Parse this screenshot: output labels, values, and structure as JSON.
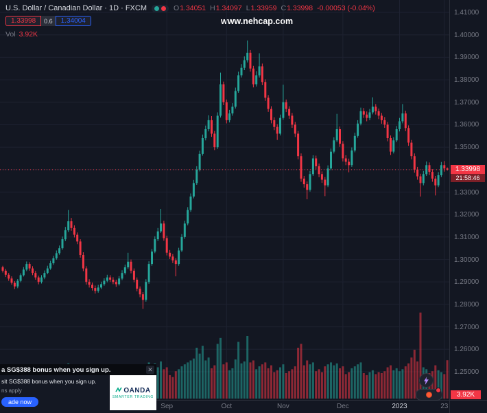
{
  "header": {
    "symbol_title": "U.S. Dollar / Canadian Dollar · 1D · FXCM",
    "ohlc": {
      "o_label": "O",
      "o_value": "1.34051",
      "h_label": "H",
      "h_value": "1.34097",
      "l_label": "L",
      "l_value": "1.33959",
      "c_label": "C",
      "c_value": "1.33998",
      "change": "-0.00053 (-0.04%)"
    },
    "sell_price": "1.33998",
    "spread": "0.6",
    "buy_price": "1.34004",
    "vol_label": "Vol",
    "vol_value": "3.92K"
  },
  "watermark": "www.nehcap.com",
  "icons": {
    "close": "✕"
  },
  "price_axis": {
    "labels": [
      "1.41000",
      "1.40000",
      "1.39000",
      "1.38000",
      "1.37000",
      "1.36000",
      "1.35000",
      "1.34000",
      "1.33000",
      "1.32000",
      "1.31000",
      "1.30000",
      "1.29000",
      "1.28000",
      "1.27000",
      "1.26000",
      "1.25000"
    ],
    "current_price": "1.33998",
    "countdown": "21:58:46",
    "volume_badge": "3.92K"
  },
  "ad": {
    "headline": "a SG$388 bonus when you sign up.",
    "body_line": "sit SG$388 bonus when you sign up.",
    "terms": "ns apply",
    "cta": "ade now",
    "brand": "OANDA",
    "brand_tagline": "SMARTER TRADING"
  },
  "colors": {
    "background": "#131722",
    "grid": "#1e2231",
    "up": "#26a69a",
    "down": "#f23645",
    "vol_up": "rgba(38,166,154,0.55)",
    "vol_down": "rgba(242,54,69,0.55)",
    "accent_buy": "#2962ff",
    "accent_sell": "#f23645"
  },
  "chart_data": {
    "type": "candlestick",
    "title": "U.S. Dollar / Canadian Dollar",
    "interval": "1D",
    "exchange": "FXCM",
    "price_range": [
      1.25,
      1.41
    ],
    "last_close": 1.33998,
    "columns": [
      "open",
      "high",
      "low",
      "close",
      "volume"
    ],
    "x_ticks": [
      {
        "label": "Sep",
        "i": 55
      },
      {
        "label": "Oct",
        "i": 75
      },
      {
        "label": "Nov",
        "i": 94
      },
      {
        "label": "Dec",
        "i": 114
      },
      {
        "label": "2023",
        "i": 133,
        "major": true
      },
      {
        "label": "23",
        "i": 148
      }
    ],
    "candles": [
      [
        1.2965,
        1.2972,
        1.2942,
        1.295,
        1800
      ],
      [
        1.295,
        1.2958,
        1.2922,
        1.2932,
        2100
      ],
      [
        1.2932,
        1.294,
        1.2905,
        1.2915,
        1700
      ],
      [
        1.2915,
        1.2925,
        1.2888,
        1.2896,
        2300
      ],
      [
        1.2896,
        1.2904,
        1.2868,
        1.288,
        2600
      ],
      [
        1.288,
        1.2913,
        1.2872,
        1.2905,
        1900
      ],
      [
        1.2905,
        1.2938,
        1.2898,
        1.293,
        2200
      ],
      [
        1.293,
        1.2966,
        1.2924,
        1.2955,
        2000
      ],
      [
        1.2955,
        1.2991,
        1.2948,
        1.298,
        2400
      ],
      [
        1.298,
        1.2988,
        1.295,
        1.296,
        1600
      ],
      [
        1.296,
        1.297,
        1.293,
        1.294,
        1800
      ],
      [
        1.294,
        1.2949,
        1.291,
        1.292,
        2100
      ],
      [
        1.292,
        1.2928,
        1.2889,
        1.29,
        2500
      ],
      [
        1.29,
        1.293,
        1.2893,
        1.292,
        1700
      ],
      [
        1.292,
        1.2951,
        1.2912,
        1.294,
        1900
      ],
      [
        1.294,
        1.2972,
        1.2934,
        1.296,
        2200
      ],
      [
        1.296,
        1.2994,
        1.2954,
        1.2983,
        2400
      ],
      [
        1.2983,
        1.3016,
        1.2976,
        1.3005,
        2600
      ],
      [
        1.3005,
        1.304,
        1.2999,
        1.3028,
        2800
      ],
      [
        1.3028,
        1.3062,
        1.3021,
        1.305,
        3000
      ],
      [
        1.305,
        1.3102,
        1.3043,
        1.309,
        3200
      ],
      [
        1.309,
        1.3145,
        1.3082,
        1.313,
        3400
      ],
      [
        1.313,
        1.322,
        1.3122,
        1.317,
        3600
      ],
      [
        1.317,
        1.3185,
        1.3128,
        1.314,
        2500
      ],
      [
        1.314,
        1.3152,
        1.3098,
        1.311,
        2300
      ],
      [
        1.311,
        1.312,
        1.3068,
        1.308,
        2600
      ],
      [
        1.308,
        1.309,
        1.3008,
        1.302,
        3100
      ],
      [
        1.302,
        1.3032,
        1.2948,
        1.296,
        3300
      ],
      [
        1.296,
        1.297,
        1.2888,
        1.29,
        3500
      ],
      [
        1.29,
        1.2912,
        1.2875,
        1.2887,
        2200
      ],
      [
        1.2887,
        1.2897,
        1.2862,
        1.2873,
        2000
      ],
      [
        1.2873,
        1.2884,
        1.2848,
        1.286,
        2400
      ],
      [
        1.286,
        1.2887,
        1.2852,
        1.2875,
        1800
      ],
      [
        1.2875,
        1.2901,
        1.2868,
        1.289,
        1900
      ],
      [
        1.289,
        1.2916,
        1.2883,
        1.2905,
        2000
      ],
      [
        1.2905,
        1.2932,
        1.2898,
        1.292,
        2100
      ],
      [
        1.292,
        1.293,
        1.29,
        1.291,
        1600
      ],
      [
        1.291,
        1.2921,
        1.289,
        1.29,
        1700
      ],
      [
        1.29,
        1.291,
        1.2878,
        1.289,
        1800
      ],
      [
        1.289,
        1.2926,
        1.2884,
        1.2915,
        2000
      ],
      [
        1.2915,
        1.2952,
        1.2908,
        1.294,
        2200
      ],
      [
        1.294,
        1.2977,
        1.2933,
        1.2965,
        2300
      ],
      [
        1.2965,
        1.303,
        1.2958,
        1.299,
        2500
      ],
      [
        1.299,
        1.3,
        1.2938,
        1.295,
        2700
      ],
      [
        1.295,
        1.296,
        1.2898,
        1.291,
        2900
      ],
      [
        1.291,
        1.292,
        1.2858,
        1.287,
        3100
      ],
      [
        1.287,
        1.288,
        1.2832,
        1.2845,
        2800
      ],
      [
        1.2845,
        1.2855,
        1.278,
        1.282,
        3300
      ],
      [
        1.282,
        1.2912,
        1.2812,
        1.29,
        3500
      ],
      [
        1.29,
        1.2992,
        1.2892,
        1.298,
        3700
      ],
      [
        1.298,
        1.3047,
        1.2972,
        1.3035,
        3400
      ],
      [
        1.3035,
        1.3103,
        1.3028,
        1.309,
        3600
      ],
      [
        1.309,
        1.314,
        1.3082,
        1.3125,
        3200
      ],
      [
        1.3125,
        1.3225,
        1.3118,
        1.316,
        3800
      ],
      [
        1.316,
        1.3172,
        1.3083,
        1.3095,
        3000
      ],
      [
        1.3095,
        1.3106,
        1.3018,
        1.303,
        3200
      ],
      [
        1.303,
        1.3042,
        1.3002,
        1.3013,
        2400
      ],
      [
        1.3013,
        1.3024,
        1.2984,
        1.2996,
        2200
      ],
      [
        1.2996,
        1.3006,
        1.2925,
        1.298,
        2800
      ],
      [
        1.298,
        1.3052,
        1.2972,
        1.304,
        3000
      ],
      [
        1.304,
        1.3113,
        1.3033,
        1.31,
        3300
      ],
      [
        1.31,
        1.3172,
        1.3092,
        1.316,
        3500
      ],
      [
        1.316,
        1.3233,
        1.3152,
        1.322,
        3700
      ],
      [
        1.322,
        1.3294,
        1.3212,
        1.328,
        3900
      ],
      [
        1.328,
        1.3354,
        1.3272,
        1.334,
        4100
      ],
      [
        1.334,
        1.3415,
        1.3332,
        1.34,
        5200
      ],
      [
        1.34,
        1.3484,
        1.3392,
        1.347,
        4600
      ],
      [
        1.347,
        1.3556,
        1.3462,
        1.354,
        5400
      ],
      [
        1.354,
        1.3596,
        1.353,
        1.358,
        3900
      ],
      [
        1.358,
        1.3642,
        1.357,
        1.362,
        4200
      ],
      [
        1.362,
        1.3638,
        1.3546,
        1.356,
        3100
      ],
      [
        1.356,
        1.3572,
        1.3487,
        1.35,
        3400
      ],
      [
        1.35,
        1.3655,
        1.3492,
        1.364,
        5600
      ],
      [
        1.364,
        1.3832,
        1.3632,
        1.378,
        6200
      ],
      [
        1.378,
        1.3792,
        1.3687,
        1.37,
        3500
      ],
      [
        1.37,
        1.3712,
        1.3606,
        1.362,
        3700
      ],
      [
        1.362,
        1.3666,
        1.361,
        1.365,
        2900
      ],
      [
        1.365,
        1.3696,
        1.364,
        1.368,
        3100
      ],
      [
        1.368,
        1.3765,
        1.3672,
        1.375,
        4000
      ],
      [
        1.375,
        1.3836,
        1.3742,
        1.382,
        5800
      ],
      [
        1.382,
        1.387,
        1.381,
        1.3853,
        3600
      ],
      [
        1.3853,
        1.3904,
        1.3843,
        1.3887,
        3800
      ],
      [
        1.3887,
        1.3975,
        1.3877,
        1.392,
        6400
      ],
      [
        1.392,
        1.3932,
        1.3836,
        1.385,
        3700
      ],
      [
        1.385,
        1.3862,
        1.3766,
        1.378,
        3900
      ],
      [
        1.378,
        1.3838,
        1.377,
        1.382,
        3000
      ],
      [
        1.382,
        1.3918,
        1.381,
        1.386,
        3300
      ],
      [
        1.386,
        1.3872,
        1.3776,
        1.379,
        3500
      ],
      [
        1.379,
        1.3802,
        1.3706,
        1.372,
        3700
      ],
      [
        1.372,
        1.3732,
        1.3657,
        1.367,
        3100
      ],
      [
        1.367,
        1.3682,
        1.3606,
        1.362,
        3400
      ],
      [
        1.362,
        1.3633,
        1.3576,
        1.359,
        2700
      ],
      [
        1.359,
        1.3602,
        1.3532,
        1.356,
        2900
      ],
      [
        1.356,
        1.3645,
        1.3552,
        1.363,
        3200
      ],
      [
        1.363,
        1.3778,
        1.3622,
        1.37,
        3500
      ],
      [
        1.37,
        1.3712,
        1.3656,
        1.367,
        2600
      ],
      [
        1.367,
        1.3682,
        1.3626,
        1.364,
        2800
      ],
      [
        1.364,
        1.3652,
        1.3586,
        1.36,
        3000
      ],
      [
        1.36,
        1.3612,
        1.3545,
        1.356,
        3300
      ],
      [
        1.356,
        1.3572,
        1.3446,
        1.346,
        5200
      ],
      [
        1.346,
        1.3472,
        1.3346,
        1.336,
        5600
      ],
      [
        1.336,
        1.3372,
        1.332,
        1.3335,
        3400
      ],
      [
        1.3335,
        1.3347,
        1.3268,
        1.331,
        3900
      ],
      [
        1.331,
        1.3394,
        1.3302,
        1.338,
        3500
      ],
      [
        1.338,
        1.3464,
        1.3372,
        1.345,
        3700
      ],
      [
        1.345,
        1.3462,
        1.3402,
        1.3415,
        2800
      ],
      [
        1.3415,
        1.3427,
        1.3366,
        1.338,
        3000
      ],
      [
        1.338,
        1.3392,
        1.3341,
        1.3355,
        2700
      ],
      [
        1.3355,
        1.3367,
        1.3282,
        1.333,
        3300
      ],
      [
        1.333,
        1.3419,
        1.3322,
        1.3405,
        3500
      ],
      [
        1.3405,
        1.3494,
        1.3397,
        1.348,
        3700
      ],
      [
        1.348,
        1.3544,
        1.3472,
        1.353,
        3400
      ],
      [
        1.353,
        1.3648,
        1.3522,
        1.358,
        3600
      ],
      [
        1.358,
        1.3592,
        1.3501,
        1.3515,
        3100
      ],
      [
        1.3515,
        1.3527,
        1.3436,
        1.345,
        3300
      ],
      [
        1.345,
        1.3464,
        1.342,
        1.3435,
        2500
      ],
      [
        1.3435,
        1.3449,
        1.3388,
        1.342,
        2700
      ],
      [
        1.342,
        1.3499,
        1.3412,
        1.3485,
        3100
      ],
      [
        1.3485,
        1.3564,
        1.3477,
        1.355,
        3300
      ],
      [
        1.355,
        1.362,
        1.3542,
        1.3605,
        3500
      ],
      [
        1.3605,
        1.3676,
        1.3597,
        1.366,
        3700
      ],
      [
        1.366,
        1.3674,
        1.363,
        1.3645,
        2600
      ],
      [
        1.3645,
        1.3659,
        1.3615,
        1.363,
        2400
      ],
      [
        1.363,
        1.367,
        1.362,
        1.3655,
        2700
      ],
      [
        1.3655,
        1.3722,
        1.3646,
        1.368,
        2900
      ],
      [
        1.368,
        1.3692,
        1.3645,
        1.366,
        2500
      ],
      [
        1.366,
        1.3672,
        1.3625,
        1.364,
        2700
      ],
      [
        1.364,
        1.3652,
        1.3604,
        1.362,
        2600
      ],
      [
        1.362,
        1.3634,
        1.3586,
        1.36,
        2800
      ],
      [
        1.36,
        1.3612,
        1.3526,
        1.354,
        3200
      ],
      [
        1.354,
        1.3552,
        1.3465,
        1.348,
        3400
      ],
      [
        1.348,
        1.3544,
        1.3472,
        1.353,
        2900
      ],
      [
        1.353,
        1.3594,
        1.3522,
        1.358,
        3100
      ],
      [
        1.358,
        1.363,
        1.357,
        1.3615,
        2800
      ],
      [
        1.3615,
        1.3692,
        1.3606,
        1.365,
        3000
      ],
      [
        1.365,
        1.3662,
        1.3571,
        1.3585,
        3300
      ],
      [
        1.3585,
        1.3597,
        1.3506,
        1.352,
        3600
      ],
      [
        1.352,
        1.3532,
        1.3446,
        1.346,
        4200
      ],
      [
        1.346,
        1.3472,
        1.3386,
        1.34,
        5000
      ],
      [
        1.34,
        1.3412,
        1.3355,
        1.337,
        3800
      ],
      [
        1.337,
        1.3382,
        1.328,
        1.334,
        8800
      ],
      [
        1.334,
        1.3394,
        1.333,
        1.338,
        3200
      ],
      [
        1.338,
        1.3436,
        1.3372,
        1.342,
        3000
      ],
      [
        1.342,
        1.3432,
        1.3376,
        1.339,
        2600
      ],
      [
        1.339,
        1.3402,
        1.3346,
        1.336,
        2800
      ],
      [
        1.336,
        1.3372,
        1.3285,
        1.333,
        3400
      ],
      [
        1.333,
        1.3389,
        1.3322,
        1.3375,
        2900
      ],
      [
        1.3375,
        1.3434,
        1.3367,
        1.342,
        2700
      ],
      [
        1.342,
        1.3438,
        1.3391,
        1.3405,
        2500
      ],
      [
        1.34051,
        1.34097,
        1.33959,
        1.33998,
        3920
      ]
    ]
  }
}
